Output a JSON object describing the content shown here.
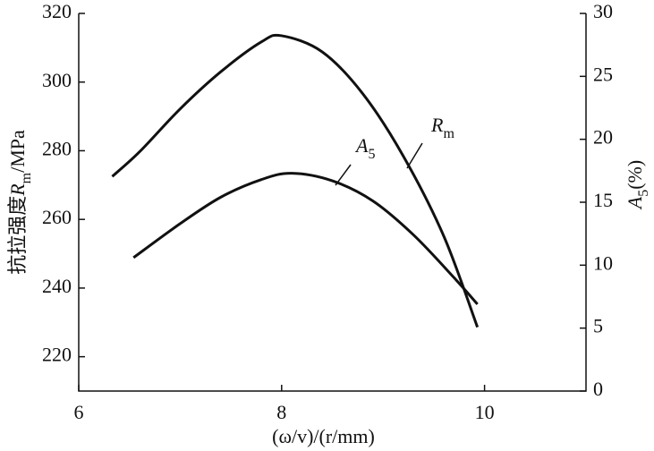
{
  "chart_data": {
    "type": "line",
    "x_label": "(ω/v)/(r/mm)",
    "y_label": [
      "抗拉强度",
      "R",
      "m",
      "/MPa"
    ],
    "y2_label": [
      "A",
      "5",
      "(%)"
    ],
    "xlim": [
      6,
      11
    ],
    "xticks": [
      6,
      8,
      10
    ],
    "ylim": [
      210,
      320
    ],
    "yticks": [
      220,
      240,
      260,
      280,
      300,
      320
    ],
    "y2lim": [
      0,
      30
    ],
    "y2ticks": [
      0,
      5,
      10,
      15,
      20,
      25,
      30
    ],
    "color": "#111111",
    "series": [
      {
        "name": [
          "R",
          "m"
        ],
        "x": [
          6.33,
          6.6,
          7.0,
          7.4,
          7.8,
          8.0,
          8.4,
          8.8,
          9.2,
          9.6,
          9.93
        ],
        "values": [
          272.5,
          279.7,
          292.2,
          303,
          311.7,
          313.5,
          308.8,
          296.6,
          278.4,
          255,
          228.6
        ]
      },
      {
        "name": [
          "A",
          "5"
        ],
        "axis": "y2",
        "x": [
          6.54,
          7.0,
          7.4,
          7.8,
          8.1,
          8.5,
          8.9,
          9.3,
          9.7,
          9.93
        ],
        "values": [
          10.6,
          13.3,
          15.4,
          16.8,
          17.3,
          16.7,
          15.1,
          12.4,
          9.0,
          6.9
        ]
      }
    ]
  }
}
